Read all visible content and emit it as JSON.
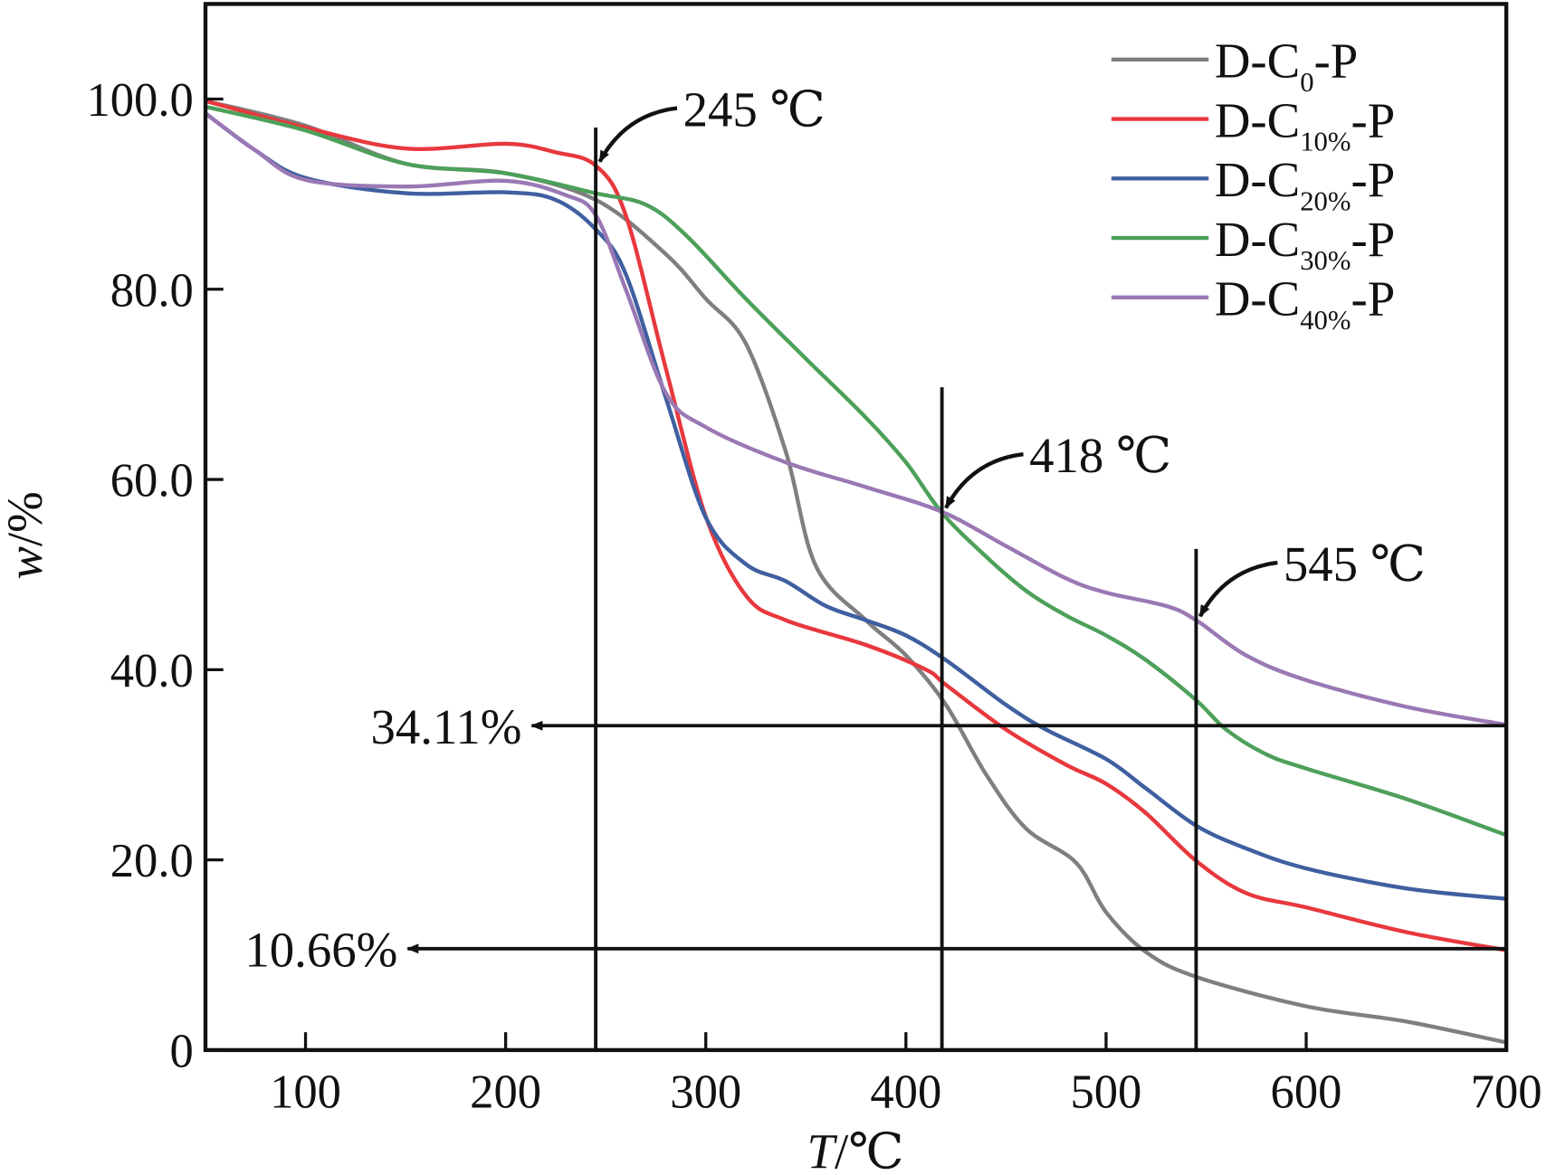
{
  "chart_data": {
    "type": "line",
    "title": "",
    "xlabel": "T/℃",
    "xlabel_italic": "T",
    "xlabel_unit": "/℃",
    "ylabel": "w/%",
    "ylabel_italic": "w",
    "ylabel_unit": "/%",
    "xlim": [
      50,
      700
    ],
    "ylim": [
      0,
      110
    ],
    "xticks": [
      100,
      200,
      300,
      400,
      500,
      600,
      700
    ],
    "xtick_labels": [
      "100",
      "200",
      "300",
      "400",
      "500",
      "600",
      "700"
    ],
    "yticks": [
      0,
      20,
      40,
      60,
      80,
      100
    ],
    "ytick_labels": [
      "0",
      "20.0",
      "40.0",
      "60.0",
      "80.0",
      "100.0"
    ],
    "grid": false,
    "legend_position": "top-right",
    "series": [
      {
        "name": "D-C0-P",
        "label_main": "D-C",
        "label_sub": "0",
        "label_tail": "-P",
        "color": "#7f7f7f",
        "x": [
          50,
          100,
          150,
          200,
          245,
          280,
          300,
          320,
          340,
          355,
          380,
          400,
          420,
          440,
          460,
          485,
          500,
          520,
          545,
          600,
          650,
          700
        ],
        "y": [
          99.8,
          97.2,
          93.2,
          92.2,
          89.4,
          83.7,
          79.0,
          74.3,
          62.9,
          50.9,
          45.2,
          41.5,
          36.3,
          29.0,
          23.3,
          19.7,
          14.5,
          10.3,
          7.7,
          4.6,
          3.0,
          0.8
        ]
      },
      {
        "name": "D-C10%-P",
        "label_main": "D-C",
        "label_sub": "10%",
        "label_tail": "-P",
        "color": "#e8383d",
        "x": [
          50,
          100,
          150,
          200,
          225,
          245,
          260,
          280,
          300,
          320,
          340,
          380,
          410,
          420,
          450,
          480,
          500,
          520,
          545,
          570,
          600,
          650,
          700
        ],
        "y": [
          99.8,
          97.0,
          94.8,
          95.3,
          94.4,
          93.0,
          87.8,
          71.7,
          56.1,
          47.8,
          45.2,
          42.6,
          40.0,
          38.4,
          33.7,
          30.0,
          28.0,
          24.9,
          19.9,
          16.5,
          15.0,
          12.4,
          10.5
        ]
      },
      {
        "name": "D-C20%-P",
        "label_main": "D-C",
        "label_sub": "20%",
        "label_tail": "-P",
        "color": "#3f5fa0",
        "x": [
          50,
          75,
          100,
          150,
          200,
          225,
          245,
          260,
          280,
          300,
          320,
          340,
          360,
          380,
          400,
          420,
          450,
          470,
          500,
          520,
          545,
          570,
          600,
          650,
          700
        ],
        "y": [
          98.5,
          94.6,
          91.7,
          90.1,
          90.2,
          89.4,
          86.3,
          81.6,
          68.6,
          56.0,
          51.1,
          49.3,
          46.7,
          45.2,
          43.6,
          41.0,
          36.3,
          33.7,
          30.6,
          27.5,
          23.6,
          21.2,
          19.1,
          17.0,
          15.9
        ]
      },
      {
        "name": "D-C30%-P",
        "label_main": "D-C",
        "label_sub": "30%",
        "label_tail": "-P",
        "color": "#4da05a",
        "x": [
          50,
          100,
          150,
          200,
          245,
          270,
          290,
          320,
          350,
          380,
          400,
          418,
          440,
          460,
          480,
          500,
          520,
          545,
          560,
          580,
          600,
          650,
          700
        ],
        "y": [
          99.2,
          96.7,
          93.2,
          92.2,
          90.1,
          88.9,
          85.7,
          79.0,
          72.7,
          66.5,
          61.8,
          56.5,
          51.9,
          48.3,
          45.7,
          43.6,
          41.0,
          36.8,
          33.7,
          31.1,
          29.6,
          26.4,
          22.6
        ]
      },
      {
        "name": "D-C40%-P",
        "label_main": "D-C",
        "label_sub": "40%",
        "label_tail": "-P",
        "color": "#9a78b4",
        "x": [
          50,
          75,
          100,
          150,
          200,
          230,
          245,
          260,
          280,
          300,
          340,
          380,
          418,
          450,
          480,
          500,
          530,
          545,
          570,
          600,
          650,
          700
        ],
        "y": [
          98.5,
          94.6,
          91.5,
          90.8,
          91.4,
          89.9,
          87.8,
          80.0,
          69.1,
          65.5,
          61.8,
          59.2,
          56.6,
          53.0,
          49.6,
          48.1,
          46.7,
          45.2,
          41.5,
          38.9,
          36.1,
          34.2
        ]
      }
    ],
    "annotations": {
      "vlines": [
        {
          "x": 245,
          "y_top": 97,
          "label": "245 ℃"
        },
        {
          "x": 418,
          "y_top": 69.7,
          "label": "418 ℃"
        },
        {
          "x": 545,
          "y_top": 52.7,
          "label": "545 ℃"
        }
      ],
      "hlines": [
        {
          "y": 34.11,
          "arrow_to_x": 213,
          "label": "34.11%"
        },
        {
          "y": 10.66,
          "arrow_to_x": 151,
          "label": "10.66%"
        }
      ]
    }
  }
}
